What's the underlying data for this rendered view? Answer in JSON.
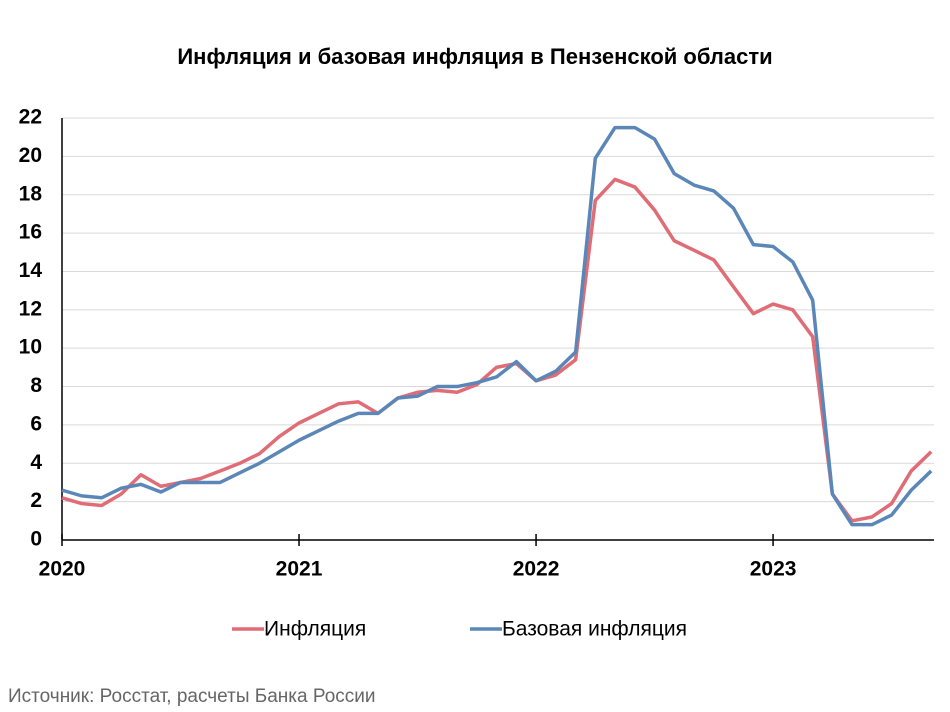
{
  "chart_data": {
    "type": "line",
    "title": "Инфляция и базовая инфляция в Пензенской области",
    "source": "Источник: Росстат, расчеты Банка России",
    "x": [
      2020,
      2020.083,
      2020.167,
      2020.25,
      2020.333,
      2020.417,
      2020.5,
      2020.583,
      2020.667,
      2020.75,
      2020.833,
      2020.917,
      2021,
      2021.083,
      2021.167,
      2021.25,
      2021.333,
      2021.417,
      2021.5,
      2021.583,
      2021.667,
      2021.75,
      2021.833,
      2021.917,
      2022,
      2022.083,
      2022.167,
      2022.25,
      2022.333,
      2022.417,
      2022.5,
      2022.583,
      2022.667,
      2022.75,
      2022.833,
      2022.917,
      2023,
      2023.083,
      2023.167,
      2023.25,
      2023.333,
      2023.417,
      2023.5,
      2023.583,
      2023.667
    ],
    "series": [
      {
        "name": "Инфляция",
        "color": "#e06c75",
        "values": [
          2.2,
          1.9,
          1.8,
          2.4,
          3.4,
          2.8,
          3.0,
          3.2,
          3.6,
          4.0,
          4.5,
          5.4,
          6.1,
          6.6,
          7.1,
          7.2,
          6.6,
          7.4,
          7.7,
          7.8,
          7.7,
          8.1,
          9.0,
          9.2,
          8.3,
          8.6,
          9.4,
          17.7,
          18.8,
          18.4,
          17.2,
          15.6,
          15.1,
          14.6,
          13.2,
          11.8,
          12.3,
          12.0,
          10.6,
          2.4,
          1.0,
          1.2,
          1.9,
          3.6,
          4.6
        ]
      },
      {
        "name": "Базовая инфляция",
        "color": "#5b87b8",
        "values": [
          2.6,
          2.3,
          2.2,
          2.7,
          2.9,
          2.5,
          3.0,
          3.0,
          3.0,
          3.5,
          4.0,
          4.6,
          5.2,
          5.7,
          6.2,
          6.6,
          6.6,
          7.4,
          7.5,
          8.0,
          8.0,
          8.2,
          8.5,
          9.3,
          8.3,
          8.8,
          9.8,
          19.9,
          21.5,
          21.5,
          20.9,
          19.1,
          18.5,
          18.2,
          17.3,
          15.4,
          15.3,
          14.5,
          12.5,
          2.4,
          0.8,
          0.8,
          1.3,
          2.6,
          3.6
        ]
      }
    ],
    "xlim": [
      2020,
      2023.7
    ],
    "xticks": [
      2020,
      2021,
      2022,
      2023
    ],
    "ylim": [
      0,
      22
    ],
    "yticks": [
      0,
      2,
      4,
      6,
      8,
      10,
      12,
      14,
      16,
      18,
      20,
      22
    ],
    "grid": true,
    "legend": "bottom"
  }
}
